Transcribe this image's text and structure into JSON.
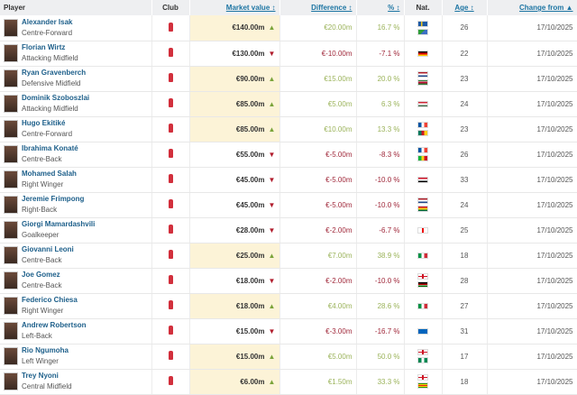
{
  "headers": {
    "player": "Player",
    "club": "Club",
    "market_value": "Market value ↕",
    "difference": "Difference ↕",
    "percent": "% ↕",
    "nat": "Nat.",
    "age": "Age ↕",
    "change_from": "Change from ▲"
  },
  "colors": {
    "up": "#7aa43a",
    "down": "#b01c2c",
    "highlight": "#fcf3d7",
    "link": "#1d5f8a"
  },
  "rows": [
    {
      "name": "Alexander Isak",
      "position": "Centre-Forward",
      "value": "€140.00m",
      "trend": "up",
      "diff": "€20.00m",
      "pct": "16.7 %",
      "flags": [
        "sweden",
        "eritrea"
      ],
      "age": "26",
      "date": "17/10/2025"
    },
    {
      "name": "Florian Wirtz",
      "position": "Attacking Midfield",
      "value": "€130.00m",
      "trend": "down",
      "diff": "€-10.00m",
      "pct": "-7.1 %",
      "flags": [
        "germany"
      ],
      "age": "22",
      "date": "17/10/2025"
    },
    {
      "name": "Ryan Gravenberch",
      "position": "Defensive Midfield",
      "value": "€90.00m",
      "trend": "up",
      "diff": "€15.00m",
      "pct": "20.0 %",
      "flags": [
        "netherlands",
        "suriname"
      ],
      "age": "23",
      "date": "17/10/2025"
    },
    {
      "name": "Dominik Szoboszlai",
      "position": "Attacking Midfield",
      "value": "€85.00m",
      "trend": "up",
      "diff": "€5.00m",
      "pct": "6.3 %",
      "flags": [
        "hungary"
      ],
      "age": "24",
      "date": "17/10/2025"
    },
    {
      "name": "Hugo Ekitiké",
      "position": "Centre-Forward",
      "value": "€85.00m",
      "trend": "up",
      "diff": "€10.00m",
      "pct": "13.3 %",
      "flags": [
        "france",
        "cameroon"
      ],
      "age": "23",
      "date": "17/10/2025"
    },
    {
      "name": "Ibrahima Konaté",
      "position": "Centre-Back",
      "value": "€55.00m",
      "trend": "down",
      "diff": "€-5.00m",
      "pct": "-8.3 %",
      "flags": [
        "france",
        "mali"
      ],
      "age": "26",
      "date": "17/10/2025"
    },
    {
      "name": "Mohamed Salah",
      "position": "Right Winger",
      "value": "€45.00m",
      "trend": "down",
      "diff": "€-5.00m",
      "pct": "-10.0 %",
      "flags": [
        "egypt"
      ],
      "age": "33",
      "date": "17/10/2025"
    },
    {
      "name": "Jeremie Frimpong",
      "position": "Right-Back",
      "value": "€45.00m",
      "trend": "down",
      "diff": "€-5.00m",
      "pct": "-10.0 %",
      "flags": [
        "netherlands",
        "ghana"
      ],
      "age": "24",
      "date": "17/10/2025"
    },
    {
      "name": "Giorgi Mamardashvili",
      "position": "Goalkeeper",
      "value": "€28.00m",
      "trend": "down",
      "diff": "€-2.00m",
      "pct": "-6.7 %",
      "flags": [
        "georgia"
      ],
      "age": "25",
      "date": "17/10/2025"
    },
    {
      "name": "Giovanni Leoni",
      "position": "Centre-Back",
      "value": "€25.00m",
      "trend": "up",
      "diff": "€7.00m",
      "pct": "38.9 %",
      "flags": [
        "italy"
      ],
      "age": "18",
      "date": "17/10/2025"
    },
    {
      "name": "Joe Gomez",
      "position": "Centre-Back",
      "value": "€18.00m",
      "trend": "down",
      "diff": "€-2.00m",
      "pct": "-10.0 %",
      "flags": [
        "england",
        "kenya"
      ],
      "age": "28",
      "date": "17/10/2025"
    },
    {
      "name": "Federico Chiesa",
      "position": "Right Winger",
      "value": "€18.00m",
      "trend": "up",
      "diff": "€4.00m",
      "pct": "28.6 %",
      "flags": [
        "italy"
      ],
      "age": "27",
      "date": "17/10/2025"
    },
    {
      "name": "Andrew Robertson",
      "position": "Left-Back",
      "value": "€15.00m",
      "trend": "down",
      "diff": "€-3.00m",
      "pct": "-16.7 %",
      "flags": [
        "scotland"
      ],
      "age": "31",
      "date": "17/10/2025"
    },
    {
      "name": "Rio Ngumoha",
      "position": "Left Winger",
      "value": "€15.00m",
      "trend": "up",
      "diff": "€5.00m",
      "pct": "50.0 %",
      "flags": [
        "england",
        "nigeria"
      ],
      "age": "17",
      "date": "17/10/2025"
    },
    {
      "name": "Trey Nyoni",
      "position": "Central Midfield",
      "value": "€6.00m",
      "trend": "up",
      "diff": "€1.50m",
      "pct": "33.3 %",
      "flags": [
        "england",
        "zimbabwe"
      ],
      "age": "18",
      "date": "17/10/2025"
    }
  ]
}
